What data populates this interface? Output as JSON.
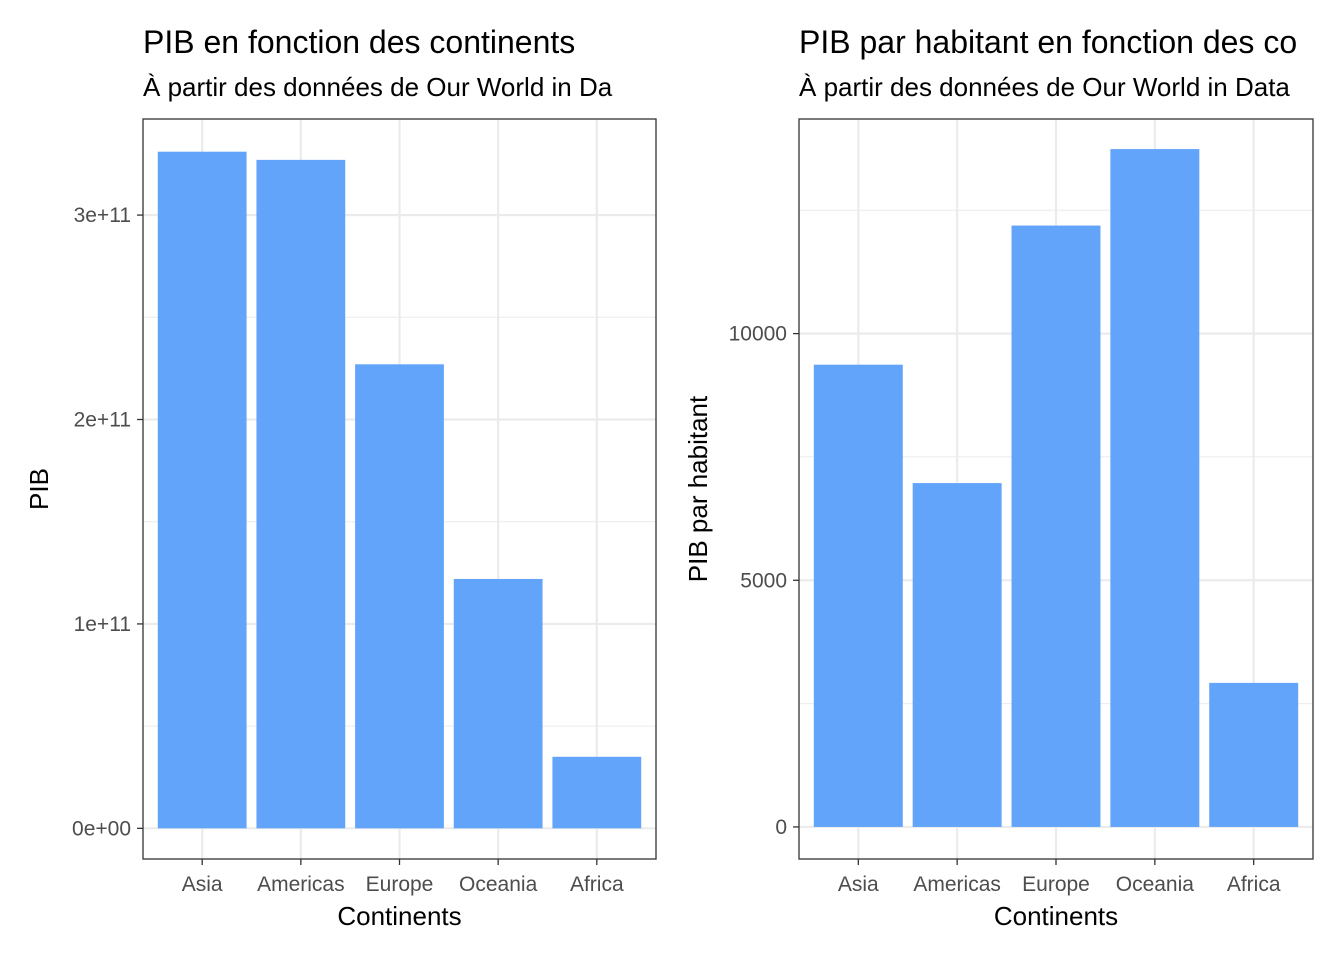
{
  "chart_data": [
    {
      "type": "bar",
      "title": "PIB en fonction des continents",
      "subtitle": "À partir des données de Our World in Da",
      "xlabel": "Continents",
      "ylabel": "PIB",
      "categories": [
        "Asia",
        "Americas",
        "Europe",
        "Oceania",
        "Africa"
      ],
      "values": [
        331000000000,
        327000000000,
        227000000000,
        122000000000,
        35000000000
      ],
      "ylim": [
        -15000000000,
        347000000000
      ],
      "yticks": [
        0,
        100000000000,
        200000000000,
        300000000000
      ],
      "ytick_labels": [
        "0e+00",
        "1e+11",
        "2e+11",
        "3e+11"
      ],
      "bar_color": "#63a4fb",
      "grid": true
    },
    {
      "type": "bar",
      "title": "PIB par habitant en fonction des co",
      "subtitle": "À partir des données de Our World in Data",
      "xlabel": "Continents",
      "ylabel": "PIB par habitant",
      "categories": [
        "Asia",
        "Americas",
        "Europe",
        "Oceania",
        "Africa"
      ],
      "values": [
        9370,
        6970,
        12190,
        13740,
        2920
      ],
      "ylim": [
        -650,
        14350
      ],
      "yticks": [
        0,
        5000,
        10000
      ],
      "ytick_labels": [
        "0",
        "5000",
        "10000"
      ],
      "bar_color": "#63a4fb",
      "grid": true
    }
  ]
}
